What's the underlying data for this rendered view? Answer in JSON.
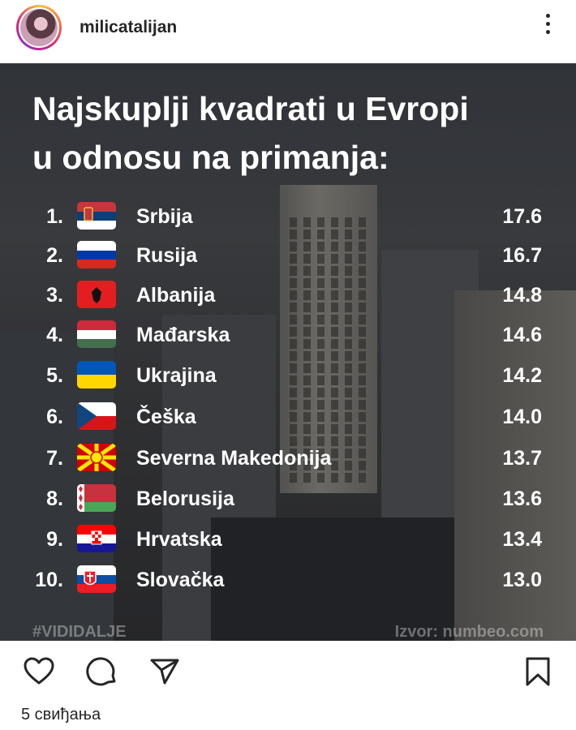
{
  "header": {
    "username": "milicatalijan",
    "avatar_icon": "profile-avatar",
    "menu_icon": "more-vertical-icon"
  },
  "post": {
    "title_line1": "Najskuplji kvadrati u Evropi",
    "title_line2": "u odnosu na primanja:",
    "rows": [
      {
        "rank": "1.",
        "country": "Srbija",
        "value": "17.6"
      },
      {
        "rank": "2.",
        "country": "Rusija",
        "value": "16.7"
      },
      {
        "rank": "3.",
        "country": "Albanija",
        "value": "14.8"
      },
      {
        "rank": "4.",
        "country": "Mađarska",
        "value": "14.6"
      },
      {
        "rank": "5.",
        "country": "Ukrajina",
        "value": "14.2"
      },
      {
        "rank": "6.",
        "country": "Češka",
        "value": "14.0"
      },
      {
        "rank": "7.",
        "country": "Severna Makedonija",
        "value": "13.7"
      },
      {
        "rank": "8.",
        "country": "Belorusija",
        "value": "13.6"
      },
      {
        "rank": "9.",
        "country": "Hrvatska",
        "value": "13.4"
      },
      {
        "rank": "10.",
        "country": "Slovačka",
        "value": "13.0"
      }
    ],
    "hashtag": "#VIDIDALJE",
    "source": "Izvor: numbeo.com"
  },
  "actions": {
    "like_icon": "heart-icon",
    "comment_icon": "comment-icon",
    "share_icon": "send-icon",
    "save_icon": "bookmark-icon"
  },
  "likes_text": "5 свиђања"
}
